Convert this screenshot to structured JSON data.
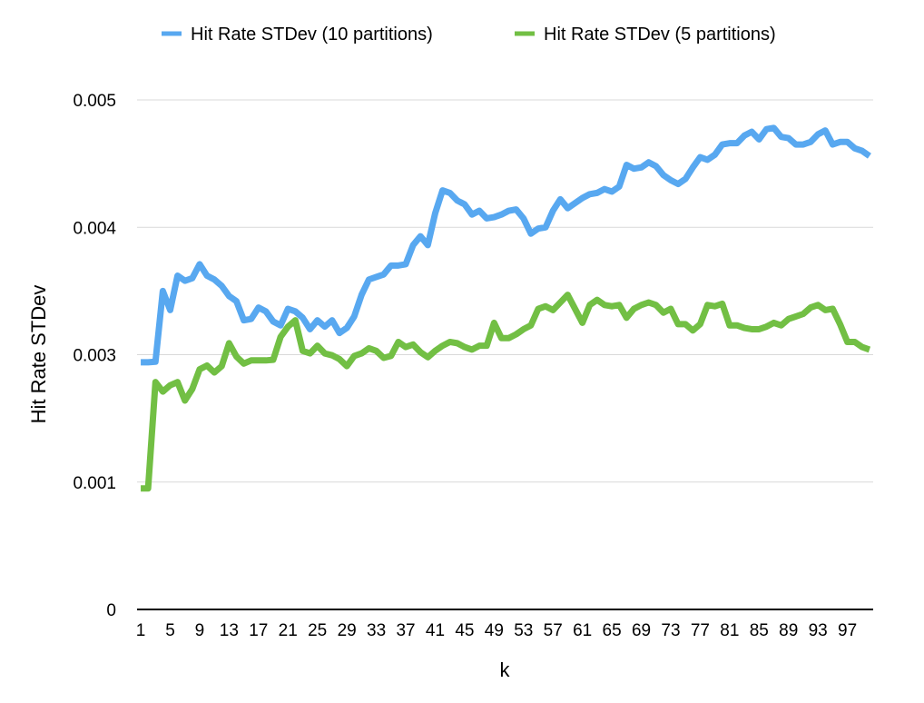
{
  "chart_data": {
    "type": "line",
    "title": "",
    "xlabel": "k",
    "ylabel": "Hit Rate STDev",
    "x_start": 1,
    "x_end": 100,
    "x_tick_labels": [
      "1",
      "5",
      "9",
      "13",
      "17",
      "21",
      "25",
      "29",
      "33",
      "37",
      "41",
      "45",
      "49",
      "53",
      "57",
      "61",
      "65",
      "69",
      "73",
      "77",
      "81",
      "85",
      "89",
      "93",
      "97"
    ],
    "y_ticks": [
      {
        "label": "0",
        "value": 0
      },
      {
        "label": "0.001",
        "value": 0.001
      },
      {
        "label": "0.003",
        "value": 0.003
      },
      {
        "label": "0.004",
        "value": 0.004
      },
      {
        "label": "0.005",
        "value": 0.005
      }
    ],
    "ylim": [
      0,
      0.005
    ],
    "grid": true,
    "legend_position": "top",
    "series": [
      {
        "name": "Hit Rate STDev (10 partitions)",
        "color": "#58a8f0",
        "values": [
          0.00288,
          0.00288,
          0.00289,
          0.0035,
          0.00335,
          0.00362,
          0.00358,
          0.0036,
          0.00371,
          0.00362,
          0.00359,
          0.00354,
          0.00346,
          0.00342,
          0.00327,
          0.00328,
          0.00337,
          0.00334,
          0.00326,
          0.00323,
          0.00336,
          0.00334,
          0.00329,
          0.0032,
          0.00327,
          0.00322,
          0.00327,
          0.00317,
          0.00321,
          0.0033,
          0.00347,
          0.00359,
          0.00361,
          0.00363,
          0.0037,
          0.0037,
          0.00371,
          0.00386,
          0.00393,
          0.00386,
          0.00411,
          0.00429,
          0.00427,
          0.00421,
          0.00418,
          0.0041,
          0.00413,
          0.00407,
          0.00408,
          0.0041,
          0.00413,
          0.00414,
          0.00407,
          0.00395,
          0.00399,
          0.004,
          0.00413,
          0.00422,
          0.00415,
          0.00419,
          0.00423,
          0.00426,
          0.00427,
          0.0043,
          0.00428,
          0.00432,
          0.00449,
          0.00446,
          0.00447,
          0.00451,
          0.00448,
          0.00441,
          0.00437,
          0.00434,
          0.00438,
          0.00447,
          0.00455,
          0.00453,
          0.00457,
          0.00465,
          0.00466,
          0.00466,
          0.00472,
          0.00475,
          0.00469,
          0.00477,
          0.00478,
          0.00471,
          0.0047,
          0.00465,
          0.00465,
          0.00467,
          0.00473,
          0.00476,
          0.00465,
          0.00467,
          0.00467,
          0.00462,
          0.0046,
          0.00456
        ]
      },
      {
        "name": "Hit Rate STDev (5 partitions)",
        "color": "#72bf44",
        "values": [
          0.00095,
          0.00095,
          0.00257,
          0.00242,
          0.00252,
          0.00257,
          0.00228,
          0.00246,
          0.00277,
          0.00283,
          0.00272,
          0.00282,
          0.00309,
          0.00297,
          0.00286,
          0.00291,
          0.00291,
          0.00291,
          0.00292,
          0.00314,
          0.00322,
          0.00327,
          0.00303,
          0.00301,
          0.00307,
          0.00301,
          0.00299,
          0.00293,
          0.00282,
          0.00298,
          0.00301,
          0.00305,
          0.00303,
          0.00295,
          0.00298,
          0.0031,
          0.00306,
          0.00308,
          0.00302,
          0.00296,
          0.00303,
          0.00307,
          0.0031,
          0.00309,
          0.00306,
          0.00304,
          0.00307,
          0.00307,
          0.00325,
          0.00313,
          0.00313,
          0.00316,
          0.0032,
          0.00323,
          0.00336,
          0.00338,
          0.00335,
          0.00341,
          0.00347,
          0.00336,
          0.00325,
          0.00339,
          0.00343,
          0.00339,
          0.00338,
          0.00339,
          0.00329,
          0.00336,
          0.00339,
          0.00341,
          0.00339,
          0.00333,
          0.00336,
          0.00324,
          0.00324,
          0.00319,
          0.00324,
          0.00339,
          0.00338,
          0.0034,
          0.00323,
          0.00323,
          0.00321,
          0.0032,
          0.0032,
          0.00322,
          0.00325,
          0.00323,
          0.00328,
          0.0033,
          0.00332,
          0.00337,
          0.00339,
          0.00335,
          0.00336,
          0.00324,
          0.0031,
          0.0031,
          0.00306,
          0.00304
        ]
      }
    ]
  }
}
